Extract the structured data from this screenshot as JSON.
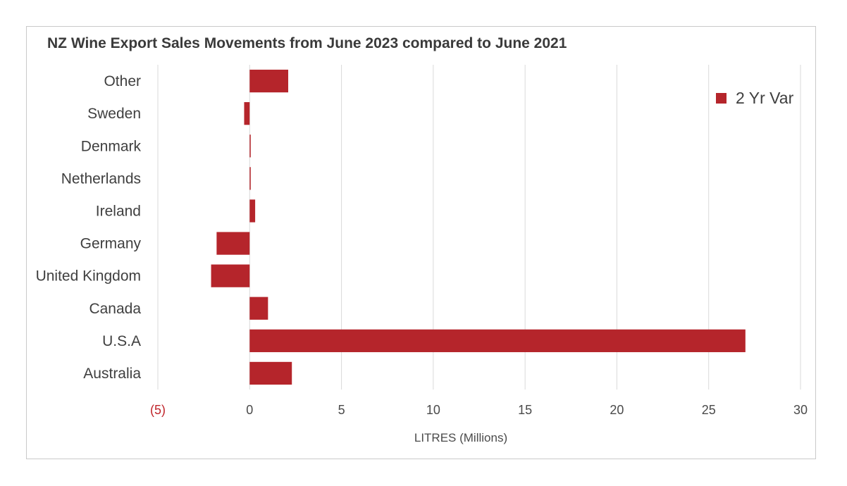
{
  "chart_data": {
    "type": "bar",
    "orientation": "horizontal",
    "title": "NZ Wine Export Sales Movements from June 2023 compared to June 2021",
    "xlabel": "LITRES (Millions)",
    "ylabel": "",
    "categories": [
      "Other",
      "Sweden",
      "Denmark",
      "Netherlands",
      "Ireland",
      "Germany",
      "United Kingdom",
      "Canada",
      "U.S.A",
      "Australia"
    ],
    "series": [
      {
        "name": "2 Yr Var",
        "values": [
          2.1,
          -0.3,
          0.05,
          0.03,
          0.3,
          -1.8,
          -2.1,
          1.0,
          27.0,
          2.3
        ],
        "color": "#b5252b"
      }
    ],
    "xlim": [
      -5,
      30
    ],
    "xticks": [
      -5,
      0,
      5,
      10,
      15,
      20,
      25,
      30
    ],
    "xtick_labels": [
      "(5)",
      "0",
      "5",
      "10",
      "15",
      "20",
      "25",
      "30"
    ],
    "negative_tick_color": "#c0252b",
    "grid": true,
    "legend_position": "top-right"
  }
}
